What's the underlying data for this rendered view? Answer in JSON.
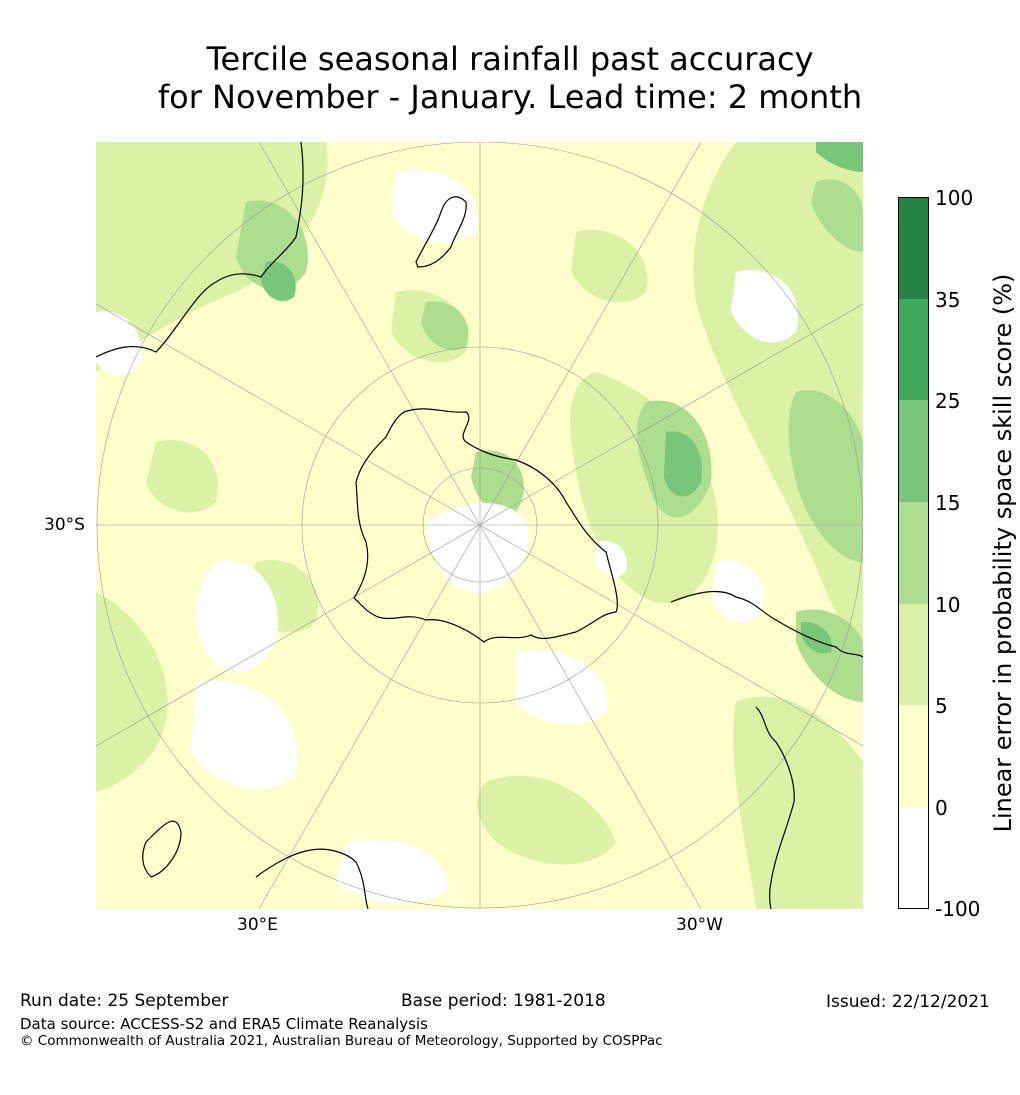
{
  "title": {
    "line1": "Tercile seasonal rainfall past accuracy",
    "line2": "for November - January. Lead time: 2 month"
  },
  "map": {
    "projection": "south polar stereographic",
    "lat_label": "30°S",
    "lon_labels": [
      "30°E",
      "30°W"
    ],
    "colors": {
      "ocean_white": "#ffffff",
      "level_0_5": "#ffffcc",
      "level_5_10": "#d9f0a3",
      "level_10_15": "#addd8e",
      "level_15_25": "#78c679",
      "level_25_35": "#41ab5d",
      "level_35_100": "#238443",
      "coastline": "#000000",
      "gridline": "#999999"
    }
  },
  "colorbar": {
    "label": "Linear error in probability space skill score (%)",
    "ticks": [
      "100",
      "35",
      "25",
      "15",
      "10",
      "5",
      "0",
      "-100"
    ],
    "bins": [
      {
        "range": "-100 to 0",
        "color": "#ffffff"
      },
      {
        "range": "0 to 5",
        "color": "#ffffcc"
      },
      {
        "range": "5 to 10",
        "color": "#d9f0a3"
      },
      {
        "range": "10 to 15",
        "color": "#addd8e"
      },
      {
        "range": "15 to 25",
        "color": "#78c679"
      },
      {
        "range": "25 to 35",
        "color": "#41ab5d"
      },
      {
        "range": "35 to 100",
        "color": "#238443"
      }
    ]
  },
  "footer": {
    "run_date": "Run date: 25 September",
    "base_period": "Base period: 1981-2018",
    "issued": "Issued: 22/12/2021",
    "data_source": "Data source: ACCESS-S2 and ERA5 Climate Reanalysis",
    "copyright": "© Commonwealth of Australia 2021, Australian Bureau of Meteorology, Supported by COSPPac"
  }
}
